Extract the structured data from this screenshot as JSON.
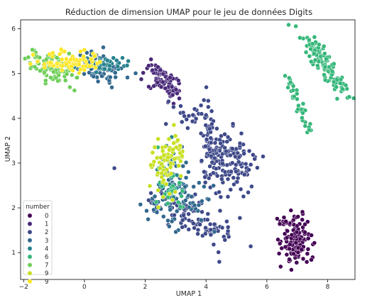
{
  "chart_data": {
    "type": "scatter",
    "title": "Réduction de dimension UMAP pour le jeu de données Digits",
    "xlabel": "UMAP 1",
    "ylabel": "UMAP 2",
    "xlim": [
      -2.1,
      8.9
    ],
    "ylim": [
      0.4,
      6.2
    ],
    "xticks": [
      -2,
      0,
      2,
      4,
      6,
      8
    ],
    "yticks": [
      1,
      2,
      3,
      4,
      5,
      6
    ],
    "grid": false,
    "legend": {
      "title": "number",
      "placement": "lower-left"
    },
    "series": [
      {
        "name": "0",
        "color": "#440154",
        "clusters": [
          {
            "cx": 7.0,
            "cy": 1.3,
            "sx": 0.22,
            "sy": 0.28,
            "n": 130,
            "angle": -0.4
          },
          {
            "cx": 6.6,
            "cy": 1.65,
            "sx": 0.12,
            "sy": 0.08,
            "n": 20,
            "angle": 0
          }
        ]
      },
      {
        "name": "1",
        "color": "#482878",
        "clusters": [
          {
            "cx": 2.5,
            "cy": 4.92,
            "sx": 0.28,
            "sy": 0.12,
            "n": 70,
            "angle": -0.5
          },
          {
            "cx": 2.95,
            "cy": 4.6,
            "sx": 0.12,
            "sy": 0.15,
            "n": 25,
            "angle": 0
          }
        ]
      },
      {
        "name": "2",
        "color": "#3e4989",
        "clusters": [
          {
            "cx": 4.65,
            "cy": 3.0,
            "sx": 0.45,
            "sy": 0.35,
            "n": 140,
            "angle": 0
          },
          {
            "cx": 4.1,
            "cy": 3.7,
            "sx": 0.12,
            "sy": 0.45,
            "n": 50,
            "angle": 0.2
          },
          {
            "cx": 3.55,
            "cy": 1.8,
            "sx": 0.8,
            "sy": 0.2,
            "n": 110,
            "angle": -0.35
          },
          {
            "cx": 3.3,
            "cy": 4.15,
            "sx": 0.25,
            "sy": 0.18,
            "n": 20,
            "angle": 0
          }
        ]
      },
      {
        "name": "3",
        "color": "#31688e",
        "clusters": [
          {
            "cx": 3.1,
            "cy": 2.3,
            "sx": 0.45,
            "sy": 0.45,
            "n": 90,
            "angle": -0.6
          },
          {
            "cx": 0.5,
            "cy": 5.1,
            "sx": 0.4,
            "sy": 0.17,
            "n": 70,
            "angle": -0.2
          }
        ]
      },
      {
        "name": "4",
        "color": "#26828e",
        "clusters": [
          {
            "cx": 0.6,
            "cy": 5.22,
            "sx": 0.35,
            "sy": 0.1,
            "n": 45,
            "angle": 0
          },
          {
            "cx": 2.75,
            "cy": 2.7,
            "sx": 0.35,
            "sy": 0.3,
            "n": 35,
            "angle": -0.7
          }
        ]
      },
      {
        "name": "6",
        "color": "#35b779",
        "clusters": [
          {
            "cx": 7.9,
            "cy": 5.2,
            "sx": 0.55,
            "sy": 0.14,
            "n": 110,
            "angle": -0.75
          },
          {
            "cx": 7.0,
            "cy": 4.4,
            "sx": 0.45,
            "sy": 0.07,
            "n": 35,
            "angle": -1.05
          },
          {
            "cx": 2.85,
            "cy": 2.5,
            "sx": 0.3,
            "sy": 0.2,
            "n": 25,
            "angle": -0.6
          }
        ]
      },
      {
        "name": "7",
        "color": "#6ece58",
        "clusters": [
          {
            "cx": -1.0,
            "cy": 5.1,
            "sx": 0.45,
            "sy": 0.14,
            "n": 100,
            "angle": -0.2
          }
        ]
      },
      {
        "name": "9",
        "color": "#c8e020",
        "clusters": [
          {
            "cx": 2.75,
            "cy": 3.0,
            "sx": 0.25,
            "sy": 0.35,
            "n": 80,
            "angle": -0.5
          }
        ]
      },
      {
        "name": "9",
        "color": "#fde725",
        "clusters": [
          {
            "cx": -0.5,
            "cy": 5.28,
            "sx": 0.55,
            "sy": 0.11,
            "n": 80,
            "angle": 0
          }
        ]
      }
    ]
  }
}
